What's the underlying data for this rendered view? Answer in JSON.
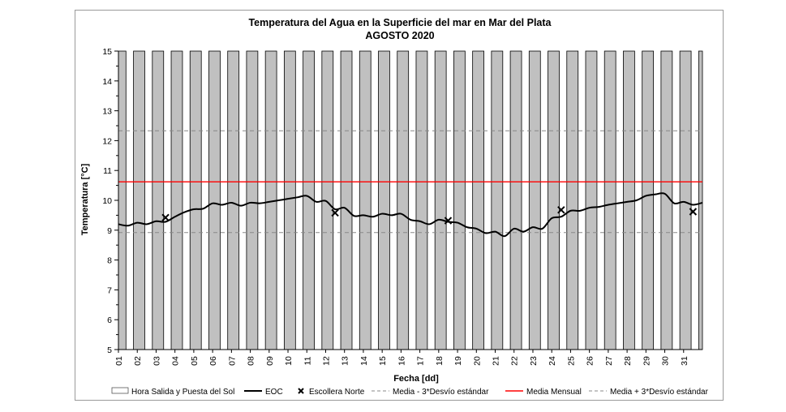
{
  "chart_data": {
    "type": "line",
    "title": "Temperatura del Agua en la Superficie del mar en Mar del Plata",
    "subtitle": "AGOSTO 2020",
    "xlabel": "Fecha [dd]",
    "ylabel": "Temperatura [°C]",
    "ylim": [
      5,
      15
    ],
    "xlim": [
      1,
      32
    ],
    "yticks": [
      5,
      6,
      7,
      8,
      9,
      10,
      11,
      12,
      13,
      14,
      15
    ],
    "xticks": [
      "01",
      "02",
      "03",
      "04",
      "05",
      "06",
      "07",
      "08",
      "09",
      "10",
      "11",
      "12",
      "13",
      "14",
      "15",
      "16",
      "17",
      "18",
      "19",
      "20",
      "21",
      "22",
      "23",
      "24",
      "25",
      "26",
      "27",
      "28",
      "29",
      "30",
      "31"
    ],
    "night_bands": {
      "name": "Hora Salida y Puesta del Sol",
      "color": "#c0c0c0",
      "intervals": [
        [
          1.0,
          1.4
        ],
        [
          1.8,
          2.4
        ],
        [
          2.8,
          3.4
        ],
        [
          3.8,
          4.4
        ],
        [
          4.8,
          5.4
        ],
        [
          5.8,
          6.4
        ],
        [
          6.8,
          7.4
        ],
        [
          7.8,
          8.4
        ],
        [
          8.8,
          9.4
        ],
        [
          9.8,
          10.4
        ],
        [
          10.8,
          11.4
        ],
        [
          11.8,
          12.4
        ],
        [
          12.8,
          13.4
        ],
        [
          13.8,
          14.4
        ],
        [
          14.8,
          15.4
        ],
        [
          15.8,
          16.4
        ],
        [
          16.8,
          17.4
        ],
        [
          17.8,
          18.4
        ],
        [
          18.8,
          19.4
        ],
        [
          19.8,
          20.4
        ],
        [
          20.8,
          21.4
        ],
        [
          21.8,
          22.4
        ],
        [
          22.8,
          23.4
        ],
        [
          23.8,
          24.4
        ],
        [
          24.8,
          25.4
        ],
        [
          25.8,
          26.4
        ],
        [
          26.8,
          27.4
        ],
        [
          27.8,
          28.4
        ],
        [
          28.8,
          29.4
        ],
        [
          29.8,
          30.4
        ],
        [
          30.8,
          31.4
        ],
        [
          31.8,
          32.0
        ]
      ]
    },
    "series": [
      {
        "name": "EOC",
        "type": "line",
        "color": "#000000",
        "x": [
          1,
          1.5,
          2,
          2.5,
          3,
          3.5,
          4,
          4.5,
          5,
          5.5,
          6,
          6.5,
          7,
          7.5,
          8,
          8.5,
          9,
          9.5,
          10,
          10.5,
          11,
          11.5,
          12,
          12.5,
          13,
          13.5,
          14,
          14.5,
          15,
          15.5,
          16,
          16.5,
          17,
          17.5,
          18,
          18.5,
          19,
          19.5,
          20,
          20.5,
          21,
          21.5,
          22,
          22.5,
          23,
          23.5,
          24,
          24.5,
          25,
          25.5,
          26,
          26.5,
          27,
          27.5,
          28,
          28.5,
          29,
          29.5,
          30,
          30.5,
          31,
          31.5,
          32
        ],
        "values": [
          9.2,
          9.15,
          9.25,
          9.2,
          9.3,
          9.28,
          9.45,
          9.6,
          9.7,
          9.72,
          9.9,
          9.85,
          9.92,
          9.82,
          9.92,
          9.9,
          9.95,
          10.0,
          10.05,
          10.1,
          10.15,
          9.95,
          9.98,
          9.7,
          9.75,
          9.48,
          9.5,
          9.45,
          9.55,
          9.5,
          9.55,
          9.35,
          9.3,
          9.2,
          9.35,
          9.28,
          9.25,
          9.1,
          9.05,
          8.9,
          8.95,
          8.8,
          9.05,
          8.95,
          9.1,
          9.05,
          9.4,
          9.45,
          9.65,
          9.65,
          9.75,
          9.78,
          9.85,
          9.9,
          9.95,
          10.0,
          10.15,
          10.2,
          10.22,
          9.9,
          9.95,
          9.85,
          9.92
        ]
      },
      {
        "name": "Escollera Norte",
        "type": "scatter",
        "marker": "x",
        "color": "#000000",
        "x": [
          3.5,
          12.5,
          18.5,
          24.5,
          31.5
        ],
        "values": [
          9.42,
          9.58,
          9.32,
          9.68,
          9.62
        ]
      },
      {
        "name": "Media - 3*Desvío estándar",
        "type": "hline",
        "style": "dashed",
        "color": "#888888",
        "value": 8.92
      },
      {
        "name": "Media Mensual",
        "type": "hline",
        "style": "solid",
        "color": "#ff0000",
        "value": 10.62
      },
      {
        "name": "Media + 3*Desvío estándar",
        "type": "hline",
        "style": "dashed",
        "color": "#888888",
        "value": 12.33
      }
    ],
    "legend_placement": "bottom",
    "grid": false
  }
}
